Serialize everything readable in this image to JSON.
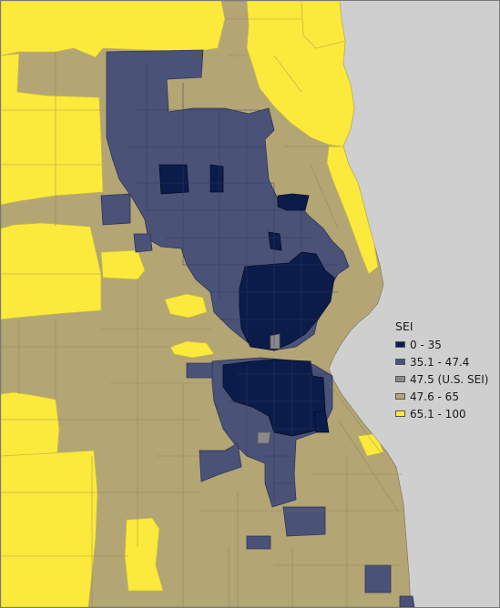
{
  "map": {
    "colors": {
      "water": "#cfcfcf",
      "tract_border": "#8a8060"
    },
    "legend": {
      "title": "SEI",
      "items": [
        {
          "label": "0 - 35",
          "color": "#0c1c4a"
        },
        {
          "label": "35.1 - 47.4",
          "color": "#4a5278"
        },
        {
          "label": "47.5 (U.S. SEI)",
          "color": "#8a8a8a"
        },
        {
          "label": "47.6 - 65",
          "color": "#b3a574"
        },
        {
          "label": "65.1 - 100",
          "color": "#fbea3c"
        }
      ]
    }
  }
}
